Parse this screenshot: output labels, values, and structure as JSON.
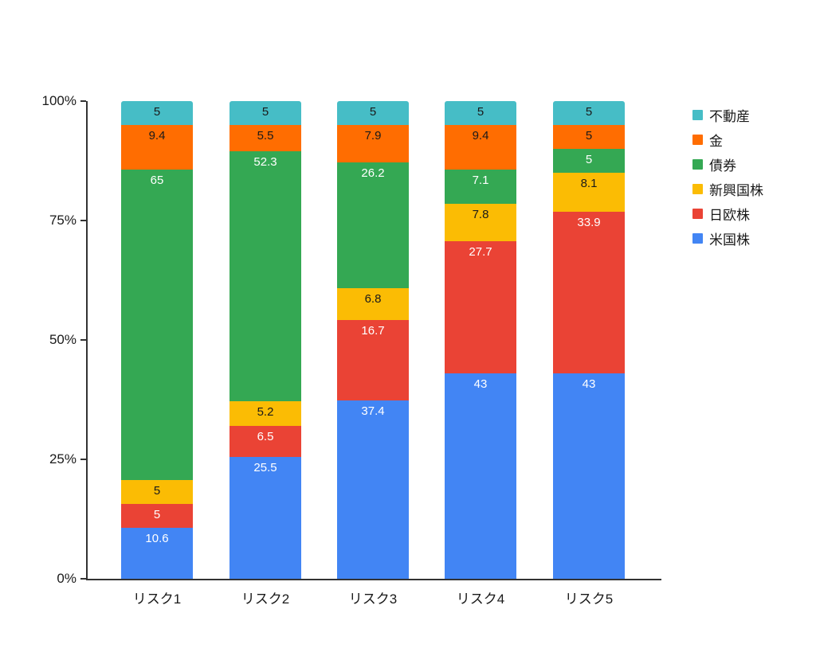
{
  "chart_data": {
    "type": "bar",
    "stacked": true,
    "units": "percent",
    "title": "",
    "categories": [
      "リスク1",
      "リスク2",
      "リスク3",
      "リスク4",
      "リスク5"
    ],
    "series": [
      {
        "name": "米国株",
        "color": "#4285F4",
        "label_color": "#FFFFFF",
        "values": [
          10.6,
          25.5,
          37.4,
          43,
          43
        ]
      },
      {
        "name": "日欧株",
        "color": "#EA4335",
        "label_color": "#FFFFFF",
        "values": [
          5,
          6.5,
          16.7,
          27.7,
          33.9
        ]
      },
      {
        "name": "新興国株",
        "color": "#FBBC04",
        "label_color": "#1A1A1A",
        "values": [
          5,
          5.2,
          6.8,
          7.8,
          8.1
        ]
      },
      {
        "name": "債券",
        "color": "#34A853",
        "label_color": "#FFFFFF",
        "values": [
          65,
          52.3,
          26.2,
          7.1,
          5
        ]
      },
      {
        "name": "金",
        "color": "#FF6D01",
        "label_color": "#1A1A1A",
        "values": [
          9.4,
          5.5,
          7.9,
          9.4,
          5
        ]
      },
      {
        "name": "不動産",
        "color": "#46BDC6",
        "label_color": "#1A1A1A",
        "values": [
          5,
          5,
          5,
          5,
          5
        ]
      }
    ],
    "y_axis": {
      "min": 0,
      "max": 100,
      "ticks": [
        "0%",
        "25%",
        "50%",
        "75%",
        "100%"
      ],
      "grid": false
    },
    "legend": {
      "position": "right",
      "items": [
        "不動産",
        "金",
        "債券",
        "新興国株",
        "日欧株",
        "米国株"
      ]
    },
    "axis_color": "#333333"
  }
}
